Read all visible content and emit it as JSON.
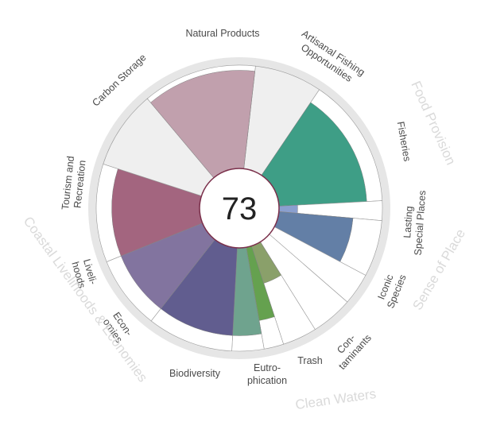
{
  "chart_data": {
    "type": "flower",
    "score": "73",
    "scale_max": 100,
    "colors": {
      "ring": "#e6e6e6",
      "empty": "#efefef",
      "outline": "#9a9a9a",
      "center_stroke": "#7a2f4a"
    },
    "petals": [
      {
        "name": "Artisanal Fishing Opportunities",
        "lines": [
          "Artisanal Fishing",
          "Opportunities"
        ],
        "value": 0,
        "na": true,
        "color": "#efefef"
      },
      {
        "name": "Fisheries",
        "lines": [
          "Fisheries"
        ],
        "value": 85,
        "na": false,
        "color": "#3e9e86"
      },
      {
        "name": "Lasting Special Places",
        "lines": [
          "Lasting",
          "Special Places"
        ],
        "value": 18,
        "na": false,
        "color": "#8a9fcf"
      },
      {
        "name": "Iconic Species",
        "lines": [
          "Iconic",
          "Species"
        ],
        "value": 72,
        "na": false,
        "color": "#637fa6"
      },
      {
        "name": "Contaminants",
        "lines": [
          "Con-",
          "taminants"
        ],
        "value": 0,
        "na": false,
        "color": "#5b6f9a"
      },
      {
        "name": "Trash",
        "lines": [
          "Trash"
        ],
        "value": 0,
        "na": false,
        "color": "#6f9a6a"
      },
      {
        "name": "Eutrophication",
        "lines": [
          "Eutro-",
          "phication"
        ],
        "value": 38,
        "na": false,
        "color": "#8aa06a"
      },
      {
        "name": "Eutrophication 2",
        "lines": [],
        "value": 72,
        "na": false,
        "color": "#65a14f"
      },
      {
        "name": "Biodiversity",
        "lines": [
          "Biodiversity"
        ],
        "value": 85,
        "na": false,
        "color": "#6fa38e"
      },
      {
        "name": "Economies",
        "lines": [
          "Econ-",
          "omies"
        ],
        "value": 85,
        "na": false,
        "color": "#615d8f"
      },
      {
        "name": "Livelihoods",
        "lines": [
          "Liveli-",
          "hoods"
        ],
        "value": 85,
        "na": false,
        "color": "#82749f"
      },
      {
        "name": "Tourism and Recreation",
        "lines": [
          "Tourism and",
          "Recreation"
        ],
        "value": 85,
        "na": false,
        "color": "#a3657f"
      },
      {
        "name": "Carbon Storage",
        "lines": [
          "Carbon Storage"
        ],
        "value": 0,
        "na": true,
        "color": "#efefef"
      },
      {
        "name": "Natural Products",
        "lines": [
          "Natural Products"
        ],
        "value": 95,
        "na": false,
        "color": "#c1a0ad"
      }
    ],
    "groups": [
      {
        "name": "Food Provision"
      },
      {
        "name": "Sense of Place"
      },
      {
        "name": "Clean Waters"
      },
      {
        "name": "Coastal Livelihoods & Economies"
      }
    ]
  }
}
